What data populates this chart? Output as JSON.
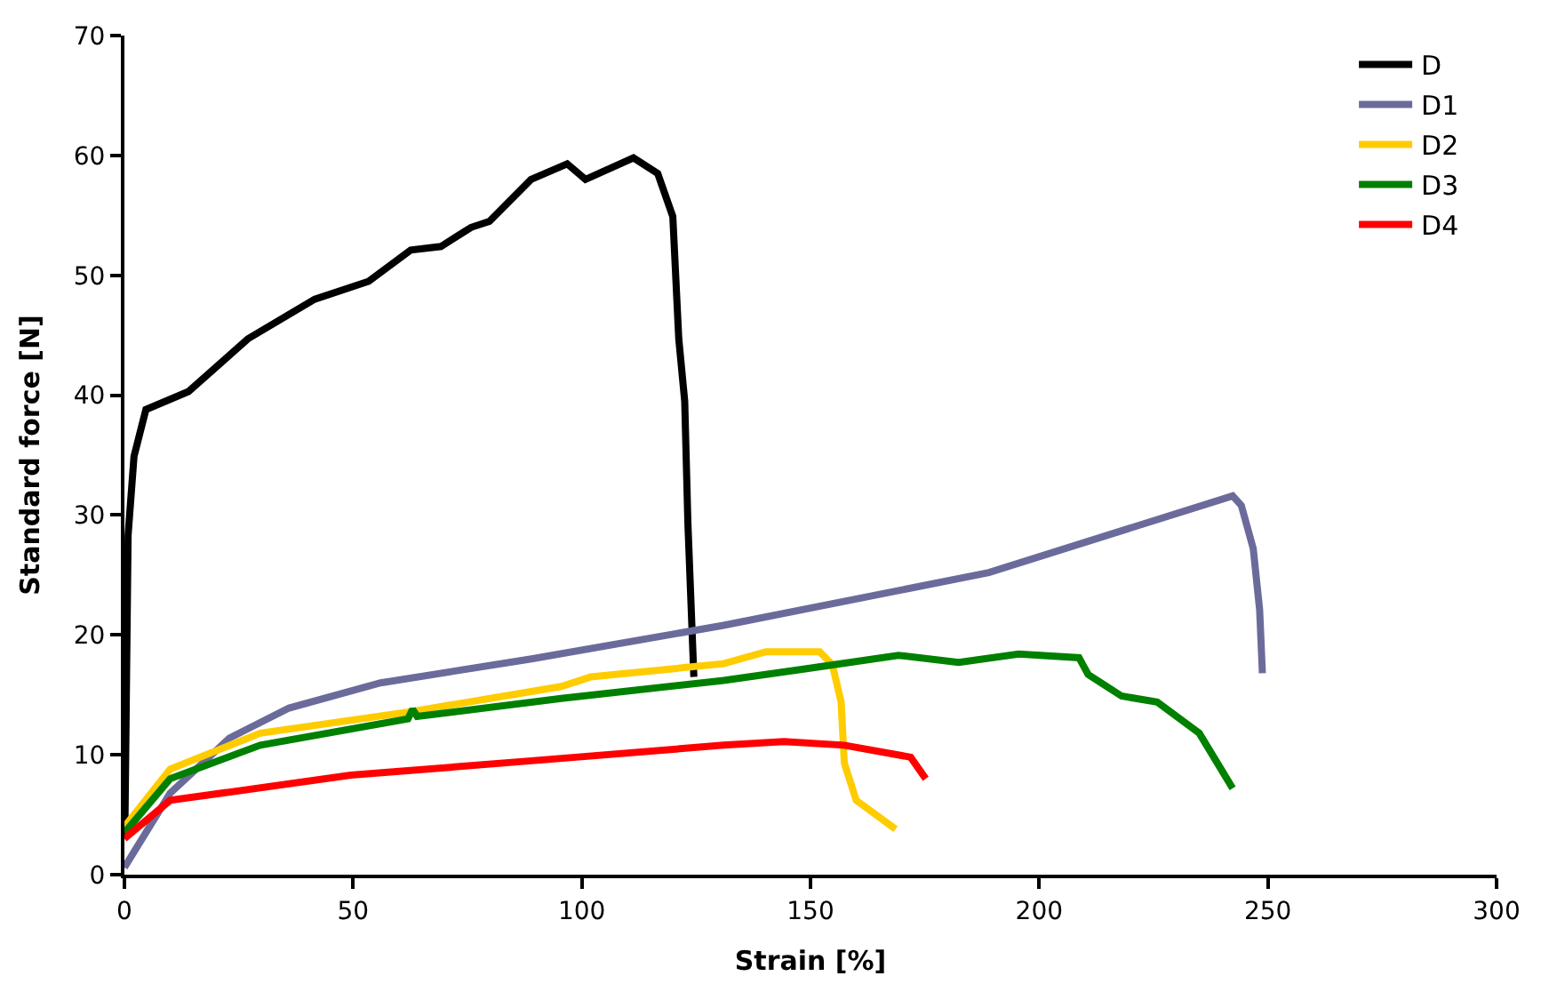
{
  "chart_data": {
    "type": "line",
    "xlabel": "Strain [%]",
    "ylabel": "Standard force [N]",
    "xlim": [
      0,
      300
    ],
    "xticks": [
      0,
      50,
      100,
      150,
      200,
      250,
      300
    ],
    "ylim": [
      0,
      70
    ],
    "yticks": [
      0,
      10,
      20,
      30,
      40,
      50,
      60,
      70
    ],
    "legend": "top right",
    "marker": "none",
    "line_style": "solid",
    "series": [
      {
        "name": "D",
        "color": "#000000",
        "x": [
          0,
          0.1,
          0.8,
          2.1,
          4.7,
          14,
          27,
          41.6,
          53.4,
          62.6,
          69.2,
          75.8,
          79.8,
          88.9,
          96.8,
          100.8,
          111.3,
          116.6,
          119.9,
          121.2,
          122.5,
          123.2,
          124.5
        ],
        "values": [
          3,
          3.7,
          28.3,
          34.9,
          38.8,
          40.3,
          44.7,
          48,
          49.5,
          52.1,
          52.4,
          54,
          54.5,
          58,
          59.3,
          58,
          59.8,
          58.5,
          54.9,
          44.7,
          39.5,
          29.3,
          16.5
        ]
      },
      {
        "name": "D1",
        "color": "#6b6b9b",
        "x": [
          0,
          10,
          23,
          36,
          56,
          89,
          131,
          189,
          242.3,
          244.2,
          246.8,
          248.2,
          248.8
        ],
        "values": [
          0.6,
          6.8,
          11.4,
          13.9,
          16,
          18,
          20.8,
          25.2,
          31.6,
          30.8,
          27.2,
          22.1,
          16.8
        ]
      },
      {
        "name": "D2",
        "color": "#ffcc00",
        "x": [
          0,
          10,
          29.7,
          62.6,
          95.5,
          102,
          131,
          140.3,
          152,
          154.8,
          156.7,
          157.4,
          160,
          168.6
        ],
        "values": [
          4,
          8.8,
          11.8,
          13.6,
          15.7,
          16.5,
          17.6,
          18.6,
          18.6,
          17.5,
          14.4,
          9.3,
          6.2,
          3.8
        ]
      },
      {
        "name": "D3",
        "color": "#008000",
        "x": [
          0,
          10,
          29.7,
          62,
          63,
          64,
          95.5,
          131,
          149.5,
          169.2,
          182.4,
          195.5,
          208.7,
          210.7,
          218,
          225.8,
          235,
          242.3
        ],
        "values": [
          3.5,
          8,
          10.8,
          13,
          13.8,
          13.2,
          14.7,
          16.2,
          17.2,
          18.3,
          17.7,
          18.4,
          18.1,
          16.7,
          14.9,
          14.4,
          11.8,
          7.2
        ]
      },
      {
        "name": "D4",
        "color": "#ff0000",
        "x": [
          0,
          10,
          49.5,
          89,
          131,
          144.2,
          157.4,
          171.9,
          175.2
        ],
        "values": [
          3,
          6.2,
          8.3,
          9.5,
          10.8,
          11.1,
          10.8,
          9.8,
          8
        ]
      }
    ]
  }
}
